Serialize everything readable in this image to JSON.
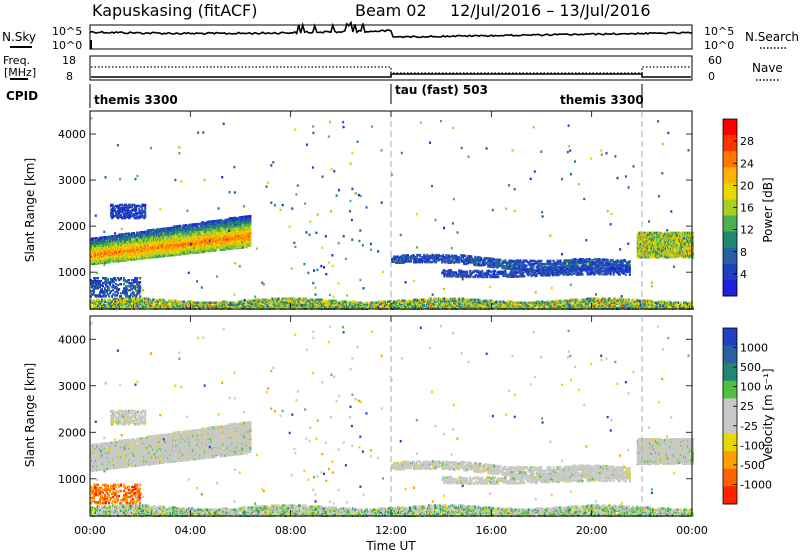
{
  "title": {
    "station": "Kapuskasing (fitACF)",
    "beam": "Beam 02",
    "daterange": "12/Jul/2016 – 13/Jul/2016"
  },
  "panels": {
    "nsky": {
      "left_label": "N.Sky",
      "right_label": "N.Search",
      "ticks_left": [
        "10^5",
        "10^0"
      ],
      "ticks_right": [
        "10^5",
        "10^0"
      ]
    },
    "freq": {
      "left_label": "Freq.",
      "left_unit": "[MHz]",
      "right_label": "Nave",
      "ticks_left": [
        "18",
        "8"
      ],
      "ticks_right": [
        "60",
        "0"
      ]
    },
    "cpid": {
      "label": "CPID",
      "segments": [
        "themis 3300",
        "tau (fast) 503",
        "themis 3300"
      ]
    }
  },
  "colorbars": {
    "power": {
      "label": "Power [dB]",
      "ticks": [
        "28",
        "24",
        "20",
        "16",
        "12",
        "8",
        "4"
      ],
      "colors": [
        "#ff0000",
        "#ff3300",
        "#ff7700",
        "#ffb000",
        "#e8d800",
        "#a8d020",
        "#50b050",
        "#1f8870",
        "#2a60a0",
        "#1c40c0",
        "#1f1fe0"
      ]
    },
    "velocity": {
      "label": "Velocity [m s⁻¹]",
      "ticks": [
        "1000",
        "500",
        "100",
        "25",
        "-25",
        "-100",
        "-500",
        "-1000"
      ],
      "colors": [
        "#2040c0",
        "#2a60a0",
        "#1f8870",
        "#50c040",
        "#c8c8c8",
        "#c8c8c8",
        "#e8d800",
        "#ffa000",
        "#ff6000",
        "#ff2000"
      ]
    }
  },
  "chart_data": [
    {
      "type": "heatmap",
      "name": "power",
      "ylabel": "Slant Range [km]",
      "ylim": [
        200,
        4500
      ],
      "yticks": [
        1000,
        2000,
        3000,
        4000
      ],
      "xlim": [
        0,
        24
      ],
      "xticks": [
        "00:00",
        "04:00",
        "08:00",
        "12:00",
        "16:00",
        "20:00",
        "00:00"
      ],
      "value_unit": "dB",
      "features": [
        {
          "desc": "near-range band",
          "x": [
            0,
            24
          ],
          "y": [
            250,
            500
          ],
          "value": 10
        },
        {
          "desc": "morning echo band",
          "x": [
            0,
            6.4
          ],
          "y": [
            1200,
            2200
          ],
          "value": 16
        },
        {
          "desc": "afternoon band",
          "x": [
            12,
            21.5
          ],
          "y": [
            1000,
            1400
          ],
          "value": 6
        },
        {
          "desc": "late band",
          "x": [
            21.8,
            24
          ],
          "y": [
            1300,
            1900
          ],
          "value": 12
        }
      ]
    },
    {
      "type": "heatmap",
      "name": "velocity",
      "ylabel": "Slant Range [km]",
      "ylim": [
        200,
        4500
      ],
      "yticks": [
        1000,
        2000,
        3000,
        4000
      ],
      "xlim": [
        0,
        24
      ],
      "xticks": [
        "00:00",
        "04:00",
        "08:00",
        "12:00",
        "16:00",
        "20:00",
        "00:00"
      ],
      "xlabel": "Time UT",
      "value_unit": "m s-1",
      "features": [
        {
          "desc": "near-range band",
          "x": [
            0,
            24
          ],
          "y": [
            250,
            500
          ],
          "value": 0
        },
        {
          "desc": "morning echo band",
          "x": [
            0,
            6.4
          ],
          "y": [
            1200,
            2200
          ],
          "value": 0
        },
        {
          "desc": "afternoon band",
          "x": [
            12,
            21.5
          ],
          "y": [
            1000,
            1400
          ],
          "value": 0
        },
        {
          "desc": "late band",
          "x": [
            21.8,
            24
          ],
          "y": [
            1300,
            1900
          ],
          "value": 0
        },
        {
          "desc": "early negative velocities",
          "x": [
            0,
            2
          ],
          "y": [
            500,
            1000
          ],
          "value": -300
        }
      ]
    }
  ]
}
